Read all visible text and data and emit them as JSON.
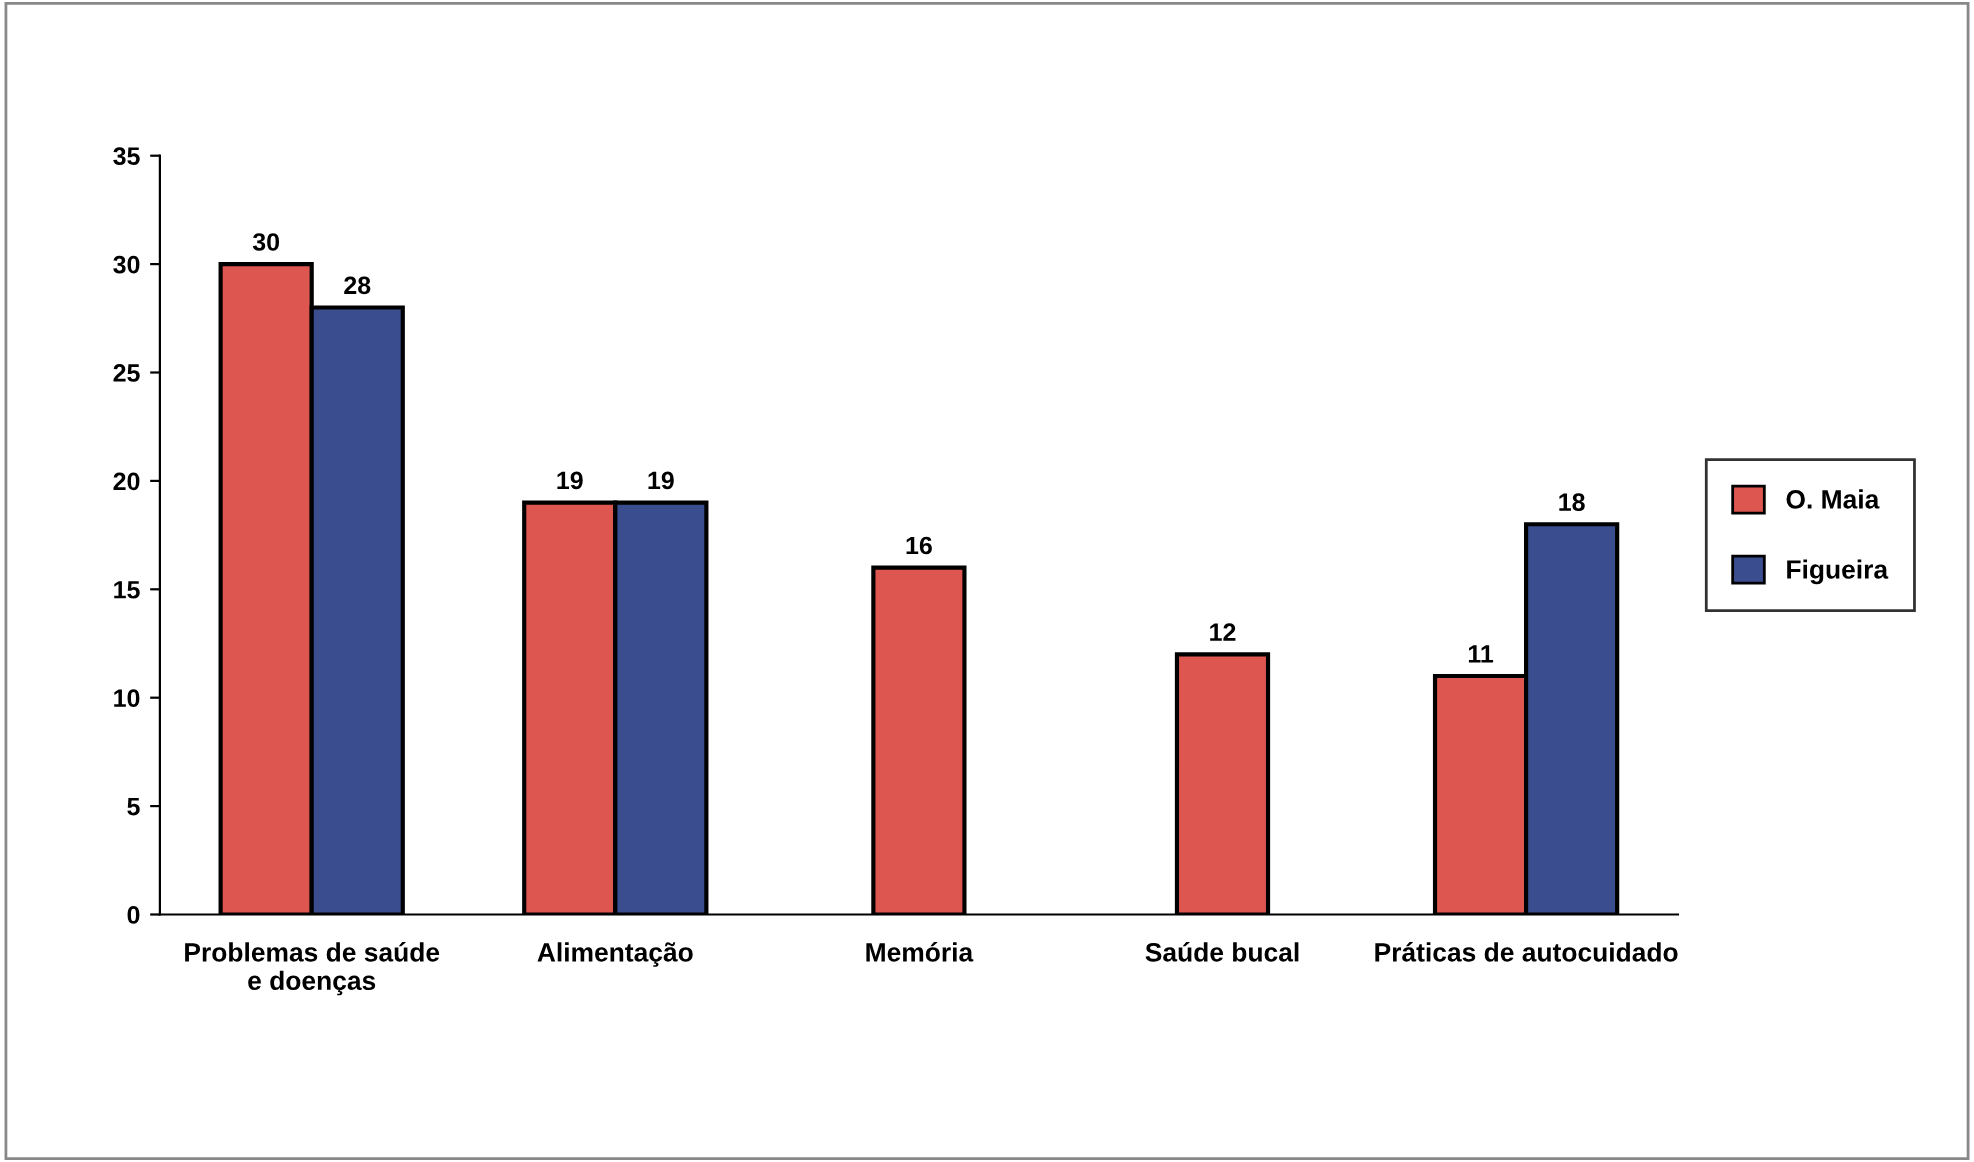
{
  "chart_data": {
    "type": "bar",
    "categories": [
      "Problemas de saúde\ne doenças",
      "Alimentação",
      "Memória",
      "Saúde bucal",
      "Práticas de autocuidado"
    ],
    "series": [
      {
        "name": "O. Maia",
        "color": "#dd5650",
        "values": [
          30,
          19,
          16,
          12,
          11
        ]
      },
      {
        "name": "Figueira",
        "color": "#3a4e8f",
        "values": [
          28,
          19,
          null,
          null,
          18
        ]
      }
    ],
    "ylim": [
      0,
      35
    ],
    "yticks": [
      0,
      5,
      10,
      15,
      20,
      25,
      30,
      35
    ],
    "data_labels": true,
    "legend": "right",
    "grid": false
  }
}
